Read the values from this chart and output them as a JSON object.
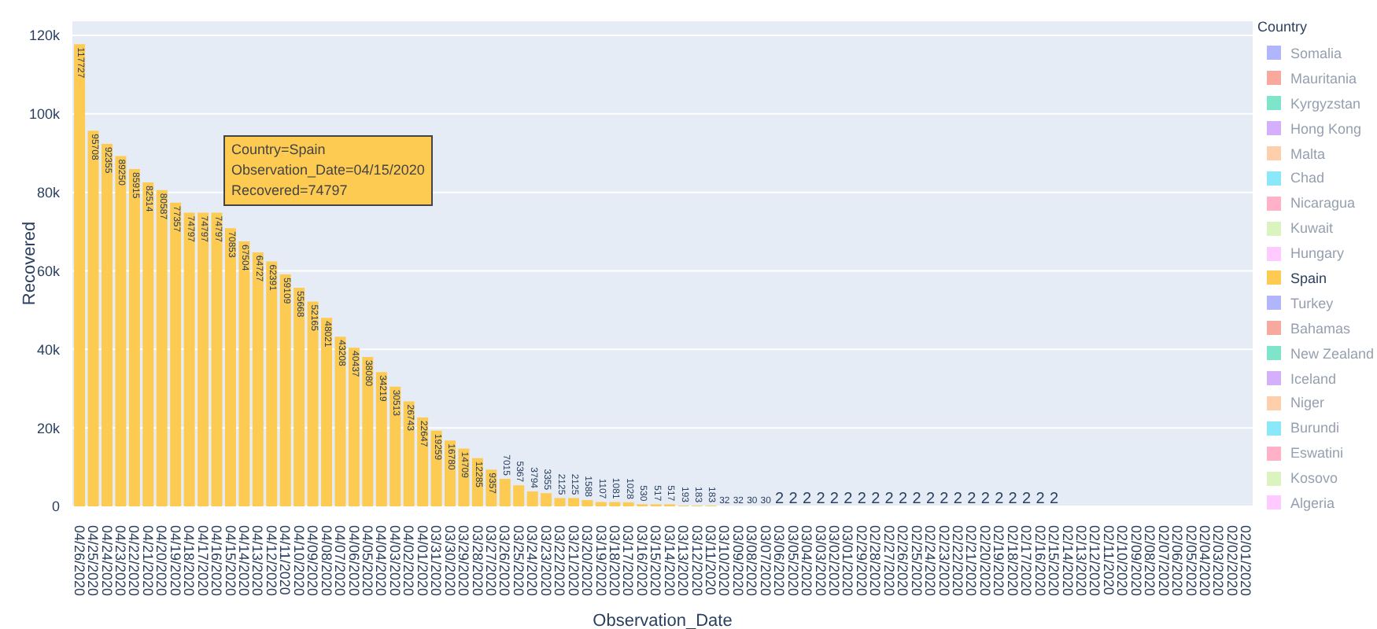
{
  "chart_data": {
    "type": "bar",
    "xlabel": "Observation_Date",
    "ylabel": "Recovered",
    "legend_title": "Country",
    "legend": "right",
    "stacked": true,
    "data_labels": true,
    "grid": "y",
    "categories": [
      "04/26/2020",
      "04/25/2020",
      "04/24/2020",
      "04/23/2020",
      "04/22/2020",
      "04/21/2020",
      "04/20/2020",
      "04/19/2020",
      "04/18/2020",
      "04/17/2020",
      "04/16/2020",
      "04/15/2020",
      "04/14/2020",
      "04/13/2020",
      "04/12/2020",
      "04/11/2020",
      "04/10/2020",
      "04/09/2020",
      "04/08/2020",
      "04/07/2020",
      "04/06/2020",
      "04/05/2020",
      "04/04/2020",
      "04/03/2020",
      "04/02/2020",
      "04/01/2020",
      "03/31/2020",
      "03/30/2020",
      "03/29/2020",
      "03/28/2020",
      "03/27/2020",
      "03/26/2020",
      "03/25/2020",
      "03/24/2020",
      "03/23/2020",
      "03/22/2020",
      "03/21/2020",
      "03/20/2020",
      "03/19/2020",
      "03/18/2020",
      "03/17/2020",
      "03/16/2020",
      "03/15/2020",
      "03/14/2020",
      "03/13/2020",
      "03/12/2020",
      "03/11/2020",
      "03/10/2020",
      "03/09/2020",
      "03/08/2020",
      "03/07/2020",
      "03/06/2020",
      "03/05/2020",
      "03/04/2020",
      "03/03/2020",
      "03/02/2020",
      "03/01/2020",
      "02/29/2020",
      "02/28/2020",
      "02/27/2020",
      "02/26/2020",
      "02/25/2020",
      "02/24/2020",
      "02/23/2020",
      "02/22/2020",
      "02/21/2020",
      "02/20/2020",
      "02/19/2020",
      "02/18/2020",
      "02/17/2020",
      "02/16/2020",
      "02/15/2020",
      "02/14/2020",
      "02/13/2020",
      "02/12/2020",
      "02/11/2020",
      "02/10/2020",
      "02/09/2020",
      "02/08/2020",
      "02/07/2020",
      "02/06/2020",
      "02/05/2020",
      "02/04/2020",
      "02/03/2020",
      "02/02/2020",
      "02/01/2020"
    ],
    "ylim": [
      0,
      123800
    ],
    "yticks": [
      0,
      {
        "value": 20000,
        "label": "20k"
      },
      {
        "value": 40000,
        "label": "40k"
      },
      {
        "value": 60000,
        "label": "60k"
      },
      {
        "value": 80000,
        "label": "80k"
      },
      {
        "value": 100000,
        "label": "100k"
      },
      {
        "value": 120000,
        "label": "120k"
      }
    ],
    "annotations": [
      "Country=Spain",
      "Observation_Date=04/15/2020",
      "Recovered=74797"
    ],
    "series": [
      {
        "name": "Somalia",
        "color": "#636efa",
        "values": [
          null,
          null,
          null,
          null,
          null,
          null,
          null,
          null,
          null,
          null,
          null,
          null,
          null,
          null,
          null,
          null,
          null,
          null,
          null,
          null,
          null,
          null,
          null,
          null,
          null,
          null,
          null,
          null,
          null,
          null,
          null,
          null,
          null,
          null,
          null,
          null,
          null,
          null,
          null,
          null,
          null,
          null,
          null,
          null,
          null,
          null,
          null,
          null,
          null,
          null,
          null,
          null,
          null,
          null,
          null,
          null,
          null,
          null,
          null,
          null,
          null,
          null,
          null,
          null,
          null,
          null,
          null,
          null,
          null,
          null,
          null,
          null,
          null,
          null,
          null,
          null,
          null,
          null,
          null,
          null,
          null,
          null,
          null,
          null,
          null,
          null
        ]
      },
      {
        "name": "Mauritania",
        "color": "#ef553b",
        "values": [
          null,
          null,
          null,
          null,
          null,
          null,
          null,
          null,
          null,
          null,
          null,
          null,
          null,
          null,
          null,
          null,
          null,
          null,
          null,
          null,
          null,
          null,
          null,
          null,
          null,
          null,
          null,
          null,
          null,
          null,
          null,
          null,
          null,
          null,
          null,
          null,
          null,
          null,
          null,
          null,
          null,
          null,
          null,
          null,
          null,
          null,
          null,
          null,
          null,
          null,
          null,
          null,
          null,
          null,
          null,
          null,
          null,
          null,
          null,
          null,
          null,
          null,
          null,
          null,
          null,
          null,
          null,
          null,
          null,
          null,
          null,
          null,
          null,
          null,
          null,
          null,
          null,
          null,
          null,
          null,
          null,
          null,
          null,
          null,
          null,
          null
        ]
      },
      {
        "name": "Kyrgyzstan",
        "color": "#00cc96",
        "values": [
          null,
          null,
          null,
          null,
          null,
          null,
          null,
          null,
          null,
          null,
          null,
          null,
          null,
          null,
          null,
          null,
          null,
          null,
          null,
          null,
          null,
          null,
          null,
          null,
          null,
          null,
          null,
          null,
          null,
          null,
          null,
          null,
          null,
          null,
          null,
          null,
          null,
          null,
          null,
          null,
          null,
          null,
          null,
          null,
          null,
          null,
          null,
          null,
          null,
          null,
          null,
          null,
          null,
          null,
          null,
          null,
          null,
          null,
          null,
          null,
          null,
          null,
          null,
          null,
          null,
          null,
          null,
          null,
          null,
          null,
          null,
          null,
          null,
          null,
          null,
          null,
          null,
          null,
          null,
          null,
          null,
          null,
          null,
          null,
          null,
          null
        ]
      },
      {
        "name": "Hong Kong",
        "color": "#ab63fa",
        "values": [
          null,
          null,
          null,
          null,
          null,
          null,
          null,
          null,
          null,
          null,
          null,
          null,
          null,
          null,
          null,
          null,
          null,
          null,
          null,
          null,
          null,
          null,
          null,
          null,
          null,
          null,
          null,
          null,
          null,
          null,
          null,
          null,
          null,
          null,
          null,
          null,
          null,
          null,
          null,
          null,
          null,
          null,
          null,
          null,
          null,
          null,
          null,
          null,
          null,
          null,
          null,
          null,
          null,
          null,
          null,
          null,
          null,
          null,
          null,
          null,
          null,
          null,
          null,
          null,
          null,
          null,
          null,
          null,
          null,
          null,
          null,
          null,
          null,
          null,
          null,
          null,
          null,
          null,
          null,
          null,
          null,
          null,
          null,
          null,
          null,
          null
        ]
      },
      {
        "name": "Malta",
        "color": "#ffa15a",
        "values": [
          null,
          null,
          null,
          null,
          null,
          null,
          null,
          null,
          null,
          null,
          null,
          null,
          null,
          null,
          null,
          null,
          null,
          null,
          null,
          null,
          null,
          null,
          null,
          null,
          null,
          null,
          null,
          null,
          null,
          null,
          null,
          null,
          null,
          null,
          null,
          null,
          null,
          null,
          null,
          null,
          null,
          null,
          null,
          null,
          null,
          null,
          null,
          null,
          null,
          null,
          null,
          null,
          null,
          null,
          null,
          null,
          null,
          null,
          null,
          null,
          null,
          null,
          null,
          null,
          null,
          null,
          null,
          null,
          null,
          null,
          null,
          null,
          null,
          null,
          null,
          null,
          null,
          null,
          null,
          null,
          null,
          null,
          null,
          null,
          null,
          null
        ]
      },
      {
        "name": "Chad",
        "color": "#19d3f3",
        "values": [
          null,
          null,
          null,
          null,
          null,
          null,
          null,
          null,
          null,
          null,
          null,
          null,
          null,
          null,
          null,
          null,
          null,
          null,
          null,
          null,
          null,
          null,
          null,
          null,
          null,
          null,
          null,
          null,
          null,
          null,
          null,
          null,
          null,
          null,
          null,
          null,
          null,
          null,
          null,
          null,
          null,
          null,
          null,
          null,
          null,
          null,
          null,
          null,
          null,
          null,
          null,
          null,
          null,
          null,
          null,
          null,
          null,
          null,
          null,
          null,
          null,
          null,
          null,
          null,
          null,
          null,
          null,
          null,
          null,
          null,
          null,
          null,
          null,
          null,
          null,
          null,
          null,
          null,
          null,
          null,
          null,
          null,
          null,
          null,
          null,
          null
        ]
      },
      {
        "name": "Nicaragua",
        "color": "#ff6692",
        "values": [
          null,
          null,
          null,
          null,
          null,
          null,
          null,
          null,
          null,
          null,
          null,
          null,
          null,
          null,
          null,
          null,
          null,
          null,
          null,
          null,
          null,
          null,
          null,
          null,
          null,
          null,
          null,
          null,
          null,
          null,
          null,
          null,
          null,
          null,
          null,
          null,
          null,
          null,
          null,
          null,
          null,
          null,
          null,
          null,
          null,
          null,
          null,
          null,
          null,
          null,
          null,
          null,
          null,
          null,
          null,
          null,
          null,
          null,
          null,
          null,
          null,
          null,
          null,
          null,
          null,
          null,
          null,
          null,
          null,
          null,
          null,
          null,
          null,
          null,
          null,
          null,
          null,
          null,
          null,
          null,
          null,
          null,
          null,
          null,
          null,
          null
        ]
      },
      {
        "name": "Kuwait",
        "color": "#b6e880",
        "values": [
          null,
          null,
          null,
          null,
          null,
          null,
          null,
          null,
          null,
          null,
          null,
          null,
          null,
          null,
          null,
          null,
          null,
          null,
          null,
          null,
          null,
          null,
          null,
          null,
          null,
          null,
          null,
          null,
          null,
          null,
          null,
          null,
          null,
          null,
          null,
          null,
          null,
          null,
          null,
          null,
          null,
          null,
          null,
          null,
          null,
          null,
          null,
          null,
          null,
          null,
          null,
          null,
          null,
          null,
          null,
          null,
          null,
          null,
          null,
          null,
          null,
          null,
          null,
          null,
          null,
          null,
          null,
          null,
          null,
          null,
          null,
          null,
          null,
          null,
          null,
          null,
          null,
          null,
          null,
          null,
          null,
          null,
          null,
          null,
          null,
          null
        ]
      },
      {
        "name": "Hungary",
        "color": "#ff97ff",
        "values": [
          null,
          null,
          null,
          null,
          null,
          null,
          null,
          null,
          null,
          null,
          null,
          null,
          null,
          null,
          null,
          null,
          null,
          null,
          null,
          null,
          null,
          null,
          null,
          null,
          null,
          null,
          null,
          null,
          null,
          null,
          null,
          null,
          null,
          null,
          null,
          null,
          null,
          null,
          null,
          null,
          null,
          null,
          null,
          null,
          null,
          null,
          null,
          null,
          null,
          null,
          null,
          null,
          null,
          null,
          null,
          null,
          null,
          null,
          null,
          null,
          null,
          null,
          null,
          null,
          null,
          null,
          null,
          null,
          null,
          null,
          null,
          null,
          null,
          null,
          null,
          null,
          null,
          null,
          null,
          null,
          null,
          null,
          null,
          null,
          null,
          null
        ]
      },
      {
        "name": "Spain",
        "color": "#fecb52",
        "values": [
          117727,
          95708,
          92355,
          89250,
          85915,
          82514,
          80587,
          77357,
          74797,
          74797,
          74797,
          70853,
          67504,
          64727,
          62391,
          59109,
          55668,
          52165,
          48021,
          43208,
          40437,
          38080,
          34219,
          30513,
          26743,
          22647,
          19259,
          16780,
          14709,
          12285,
          9357,
          7015,
          5367,
          3794,
          3355,
          2125,
          2125,
          1588,
          1107,
          1081,
          1028,
          530,
          517,
          517,
          193,
          183,
          183,
          32,
          32,
          30,
          30,
          2,
          2,
          2,
          2,
          2,
          2,
          2,
          2,
          2,
          2,
          2,
          2,
          2,
          2,
          2,
          2,
          2,
          2,
          2,
          2,
          2,
          null,
          null,
          null,
          null,
          null,
          null,
          null,
          null,
          null,
          null,
          null,
          null,
          null,
          null
        ]
      },
      {
        "name": "Turkey",
        "color": "#636efa",
        "values": [
          null,
          null,
          null,
          null,
          null,
          null,
          null,
          null,
          null,
          null,
          null,
          null,
          null,
          null,
          null,
          null,
          null,
          null,
          null,
          null,
          null,
          null,
          null,
          null,
          null,
          null,
          null,
          null,
          null,
          null,
          null,
          null,
          null,
          null,
          null,
          null,
          null,
          null,
          null,
          null,
          null,
          null,
          null,
          null,
          null,
          null,
          null,
          null,
          null,
          null,
          null,
          null,
          null,
          null,
          null,
          null,
          null,
          null,
          null,
          null,
          null,
          null,
          null,
          null,
          null,
          null,
          null,
          null,
          null,
          null,
          null,
          null,
          null,
          null,
          null,
          null,
          null,
          null,
          null,
          null,
          null,
          null,
          null,
          null,
          null,
          null
        ]
      },
      {
        "name": "Bahamas",
        "color": "#ef553b",
        "values": [
          null,
          null,
          null,
          null,
          null,
          null,
          null,
          null,
          null,
          null,
          null,
          null,
          null,
          null,
          null,
          null,
          null,
          null,
          null,
          null,
          null,
          null,
          null,
          null,
          null,
          null,
          null,
          null,
          null,
          null,
          null,
          null,
          null,
          null,
          null,
          null,
          null,
          null,
          null,
          null,
          null,
          null,
          null,
          null,
          null,
          null,
          null,
          null,
          null,
          null,
          null,
          null,
          null,
          null,
          null,
          null,
          null,
          null,
          null,
          null,
          null,
          null,
          null,
          null,
          null,
          null,
          null,
          null,
          null,
          null,
          null,
          null,
          null,
          null,
          null,
          null,
          null,
          null,
          null,
          null,
          null,
          null,
          null,
          null,
          null,
          null
        ]
      },
      {
        "name": "New Zealand",
        "color": "#00cc96",
        "values": [
          null,
          null,
          null,
          null,
          null,
          null,
          null,
          null,
          null,
          null,
          null,
          null,
          null,
          null,
          null,
          null,
          null,
          null,
          null,
          null,
          null,
          null,
          null,
          null,
          null,
          null,
          null,
          null,
          null,
          null,
          null,
          null,
          null,
          null,
          null,
          null,
          null,
          null,
          null,
          null,
          null,
          null,
          null,
          null,
          null,
          null,
          null,
          null,
          null,
          null,
          null,
          null,
          null,
          null,
          null,
          null,
          null,
          null,
          null,
          null,
          null,
          null,
          null,
          null,
          null,
          null,
          null,
          null,
          null,
          null,
          null,
          null,
          null,
          null,
          null,
          null,
          null,
          null,
          null,
          null,
          null,
          null,
          null,
          null,
          null,
          null
        ]
      },
      {
        "name": "Iceland",
        "color": "#ab63fa",
        "values": [
          null,
          null,
          null,
          null,
          null,
          null,
          null,
          null,
          null,
          null,
          null,
          null,
          null,
          null,
          null,
          null,
          null,
          null,
          null,
          null,
          null,
          null,
          null,
          null,
          null,
          null,
          null,
          null,
          null,
          null,
          null,
          null,
          null,
          null,
          null,
          null,
          null,
          null,
          null,
          null,
          null,
          null,
          null,
          null,
          null,
          null,
          null,
          null,
          null,
          null,
          null,
          null,
          null,
          null,
          null,
          null,
          null,
          null,
          null,
          null,
          null,
          null,
          null,
          null,
          null,
          null,
          null,
          null,
          null,
          null,
          null,
          null,
          null,
          null,
          null,
          null,
          null,
          null,
          null,
          null,
          null,
          null,
          null,
          null,
          null,
          null
        ]
      },
      {
        "name": "Niger",
        "color": "#ffa15a",
        "values": [
          null,
          null,
          null,
          null,
          null,
          null,
          null,
          null,
          null,
          null,
          null,
          null,
          null,
          null,
          null,
          null,
          null,
          null,
          null,
          null,
          null,
          null,
          null,
          null,
          null,
          null,
          null,
          null,
          null,
          null,
          null,
          null,
          null,
          null,
          null,
          null,
          null,
          null,
          null,
          null,
          null,
          null,
          null,
          null,
          null,
          null,
          null,
          null,
          null,
          null,
          null,
          null,
          null,
          null,
          null,
          null,
          null,
          null,
          null,
          null,
          null,
          null,
          null,
          null,
          null,
          null,
          null,
          null,
          null,
          null,
          null,
          null,
          null,
          null,
          null,
          null,
          null,
          null,
          null,
          null,
          null,
          null,
          null,
          null,
          null,
          null
        ]
      },
      {
        "name": "Burundi",
        "color": "#19d3f3",
        "values": [
          null,
          null,
          null,
          null,
          null,
          null,
          null,
          null,
          null,
          null,
          null,
          null,
          null,
          null,
          null,
          null,
          null,
          null,
          null,
          null,
          null,
          null,
          null,
          null,
          null,
          null,
          null,
          null,
          null,
          null,
          null,
          null,
          null,
          null,
          null,
          null,
          null,
          null,
          null,
          null,
          null,
          null,
          null,
          null,
          null,
          null,
          null,
          null,
          null,
          null,
          null,
          null,
          null,
          null,
          null,
          null,
          null,
          null,
          null,
          null,
          null,
          null,
          null,
          null,
          null,
          null,
          null,
          null,
          null,
          null,
          null,
          null,
          null,
          null,
          null,
          null,
          null,
          null,
          null,
          null,
          null,
          null,
          null,
          null,
          null,
          null
        ]
      },
      {
        "name": "Eswatini",
        "color": "#ff6692",
        "values": [
          null,
          null,
          null,
          null,
          null,
          null,
          null,
          null,
          null,
          null,
          null,
          null,
          null,
          null,
          null,
          null,
          null,
          null,
          null,
          null,
          null,
          null,
          null,
          null,
          null,
          null,
          null,
          null,
          null,
          null,
          null,
          null,
          null,
          null,
          null,
          null,
          null,
          null,
          null,
          null,
          null,
          null,
          null,
          null,
          null,
          null,
          null,
          null,
          null,
          null,
          null,
          null,
          null,
          null,
          null,
          null,
          null,
          null,
          null,
          null,
          null,
          null,
          null,
          null,
          null,
          null,
          null,
          null,
          null,
          null,
          null,
          null,
          null,
          null,
          null,
          null,
          null,
          null,
          null,
          null,
          null,
          null,
          null,
          null,
          null,
          null
        ]
      },
      {
        "name": "Kosovo",
        "color": "#b6e880",
        "values": [
          null,
          null,
          null,
          null,
          null,
          null,
          null,
          null,
          null,
          null,
          null,
          null,
          null,
          null,
          null,
          null,
          null,
          null,
          null,
          null,
          null,
          null,
          null,
          null,
          null,
          null,
          null,
          null,
          null,
          null,
          null,
          null,
          null,
          null,
          null,
          null,
          null,
          null,
          null,
          null,
          null,
          null,
          null,
          null,
          null,
          null,
          null,
          null,
          null,
          null,
          null,
          null,
          null,
          null,
          null,
          null,
          null,
          null,
          null,
          null,
          null,
          null,
          null,
          null,
          null,
          null,
          null,
          null,
          null,
          null,
          null,
          null,
          null,
          null,
          null,
          null,
          null,
          null,
          null,
          null,
          null,
          null,
          null,
          null,
          null,
          null
        ]
      },
      {
        "name": "Algeria",
        "color": "#ff97ff",
        "values": [
          null,
          null,
          null,
          null,
          null,
          null,
          null,
          null,
          null,
          null,
          null,
          null,
          null,
          null,
          null,
          null,
          null,
          null,
          null,
          null,
          null,
          null,
          null,
          null,
          null,
          null,
          null,
          null,
          null,
          null,
          null,
          null,
          null,
          null,
          null,
          null,
          null,
          null,
          null,
          null,
          null,
          null,
          null,
          null,
          null,
          null,
          null,
          null,
          null,
          null,
          null,
          null,
          null,
          null,
          null,
          null,
          null,
          null,
          null,
          null,
          null,
          null,
          null,
          null,
          null,
          null,
          null,
          null,
          null,
          null,
          null,
          null,
          null,
          null,
          null,
          null,
          null,
          null,
          null,
          null,
          null,
          null,
          null,
          null,
          null,
          null
        ]
      }
    ]
  }
}
